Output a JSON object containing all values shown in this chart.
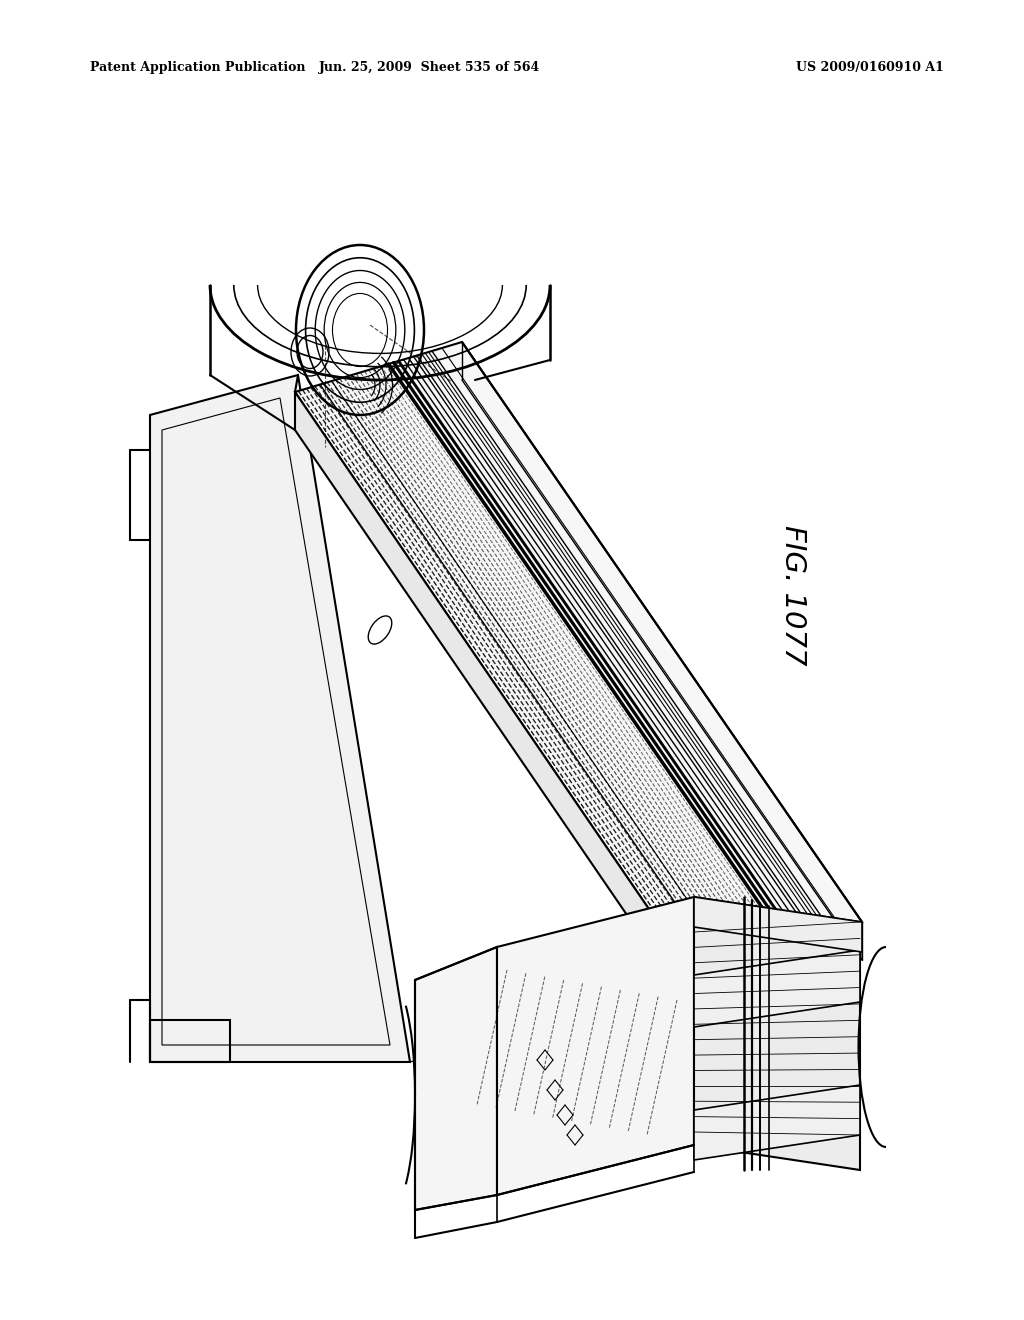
{
  "background_color": "#ffffff",
  "header_left": "Patent Application Publication",
  "header_middle": "Jun. 25, 2009  Sheet 535 of 564",
  "header_right": "US 2009/0160910 A1",
  "fig_label": "FIG. 1077",
  "line_color": "#000000",
  "fig_width": 10.24,
  "fig_height": 13.2,
  "dpi": 100
}
